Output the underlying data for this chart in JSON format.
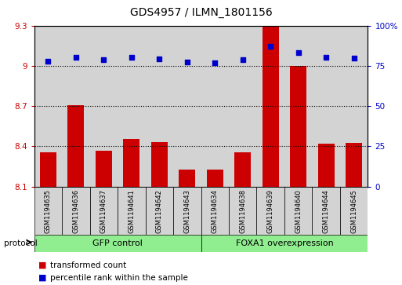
{
  "title": "GDS4957 / ILMN_1801156",
  "samples": [
    "GSM1194635",
    "GSM1194636",
    "GSM1194637",
    "GSM1194641",
    "GSM1194642",
    "GSM1194643",
    "GSM1194634",
    "GSM1194638",
    "GSM1194639",
    "GSM1194640",
    "GSM1194644",
    "GSM1194645"
  ],
  "red_values": [
    8.355,
    8.705,
    8.37,
    8.455,
    8.435,
    8.225,
    8.225,
    8.355,
    9.3,
    9.0,
    8.42,
    8.425
  ],
  "blue_values": [
    78,
    80.5,
    79,
    80.5,
    79.5,
    77.5,
    77,
    79,
    87,
    83.5,
    80.5,
    80
  ],
  "ylim_left": [
    8.1,
    9.3
  ],
  "ylim_right": [
    0,
    100
  ],
  "yticks_left": [
    8.1,
    8.4,
    8.7,
    9.0,
    9.3
  ],
  "yticks_right": [
    0,
    25,
    50,
    75,
    100
  ],
  "ytick_labels_left": [
    "8.1",
    "8.4",
    "8.7",
    "9",
    "9.3"
  ],
  "ytick_labels_right": [
    "0",
    "25",
    "50",
    "75",
    "100%"
  ],
  "hlines": [
    9.0,
    8.7,
    8.4
  ],
  "gfp_group": [
    0,
    1,
    2,
    3,
    4,
    5
  ],
  "foxa1_group": [
    6,
    7,
    8,
    9,
    10,
    11
  ],
  "gfp_label": "GFP control",
  "foxa1_label": "FOXA1 overexpression",
  "protocol_label": "protocol",
  "legend_red": "transformed count",
  "legend_blue": "percentile rank within the sample",
  "bar_bottom": 8.1,
  "bar_color": "#cc0000",
  "dot_color": "#0000cc",
  "gfp_color": "#90ee90",
  "foxa1_color": "#90ee90",
  "bg_color": "#d3d3d3",
  "bar_width": 0.6
}
